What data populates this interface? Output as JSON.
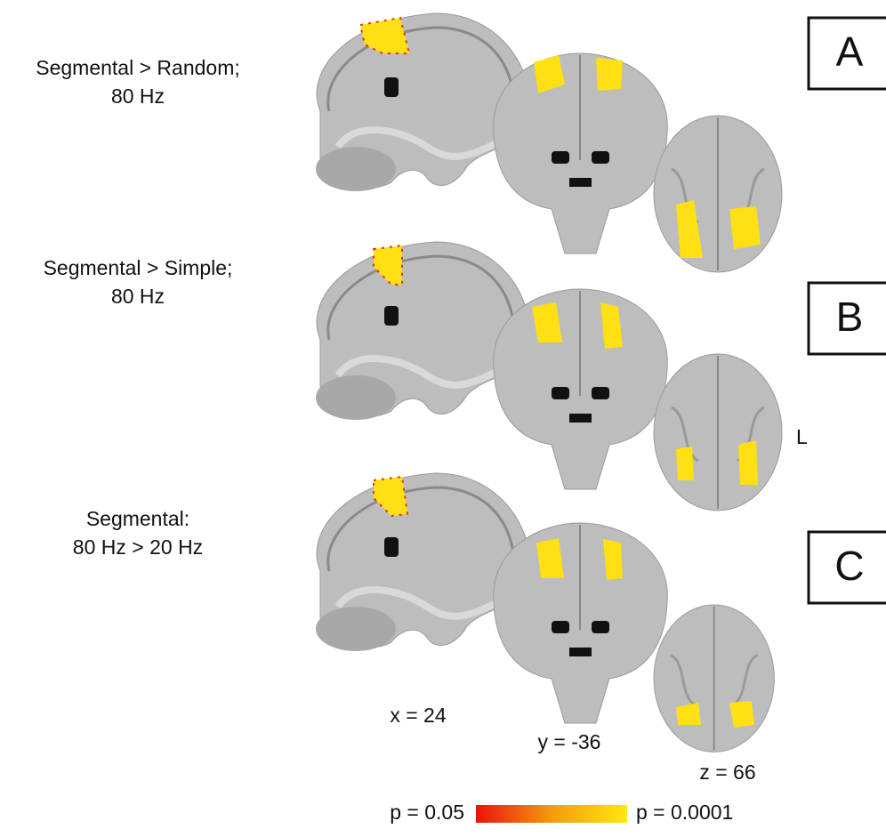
{
  "rows": [
    {
      "lines": [
        "Segmental > Random;",
        "80 Hz"
      ],
      "panel": "A"
    },
    {
      "lines": [
        "Segmental > Simple;",
        "80 Hz"
      ],
      "panel": "B"
    },
    {
      "lines": [
        "Segmental:",
        "80 Hz > 20 Hz"
      ],
      "panel": "C"
    }
  ],
  "coordinates": [
    "x = 24",
    "y = -36",
    "z = 66"
  ],
  "side_label": "L",
  "colorbar": {
    "low": "p = 0.05",
    "high": "p = 0.0001"
  }
}
